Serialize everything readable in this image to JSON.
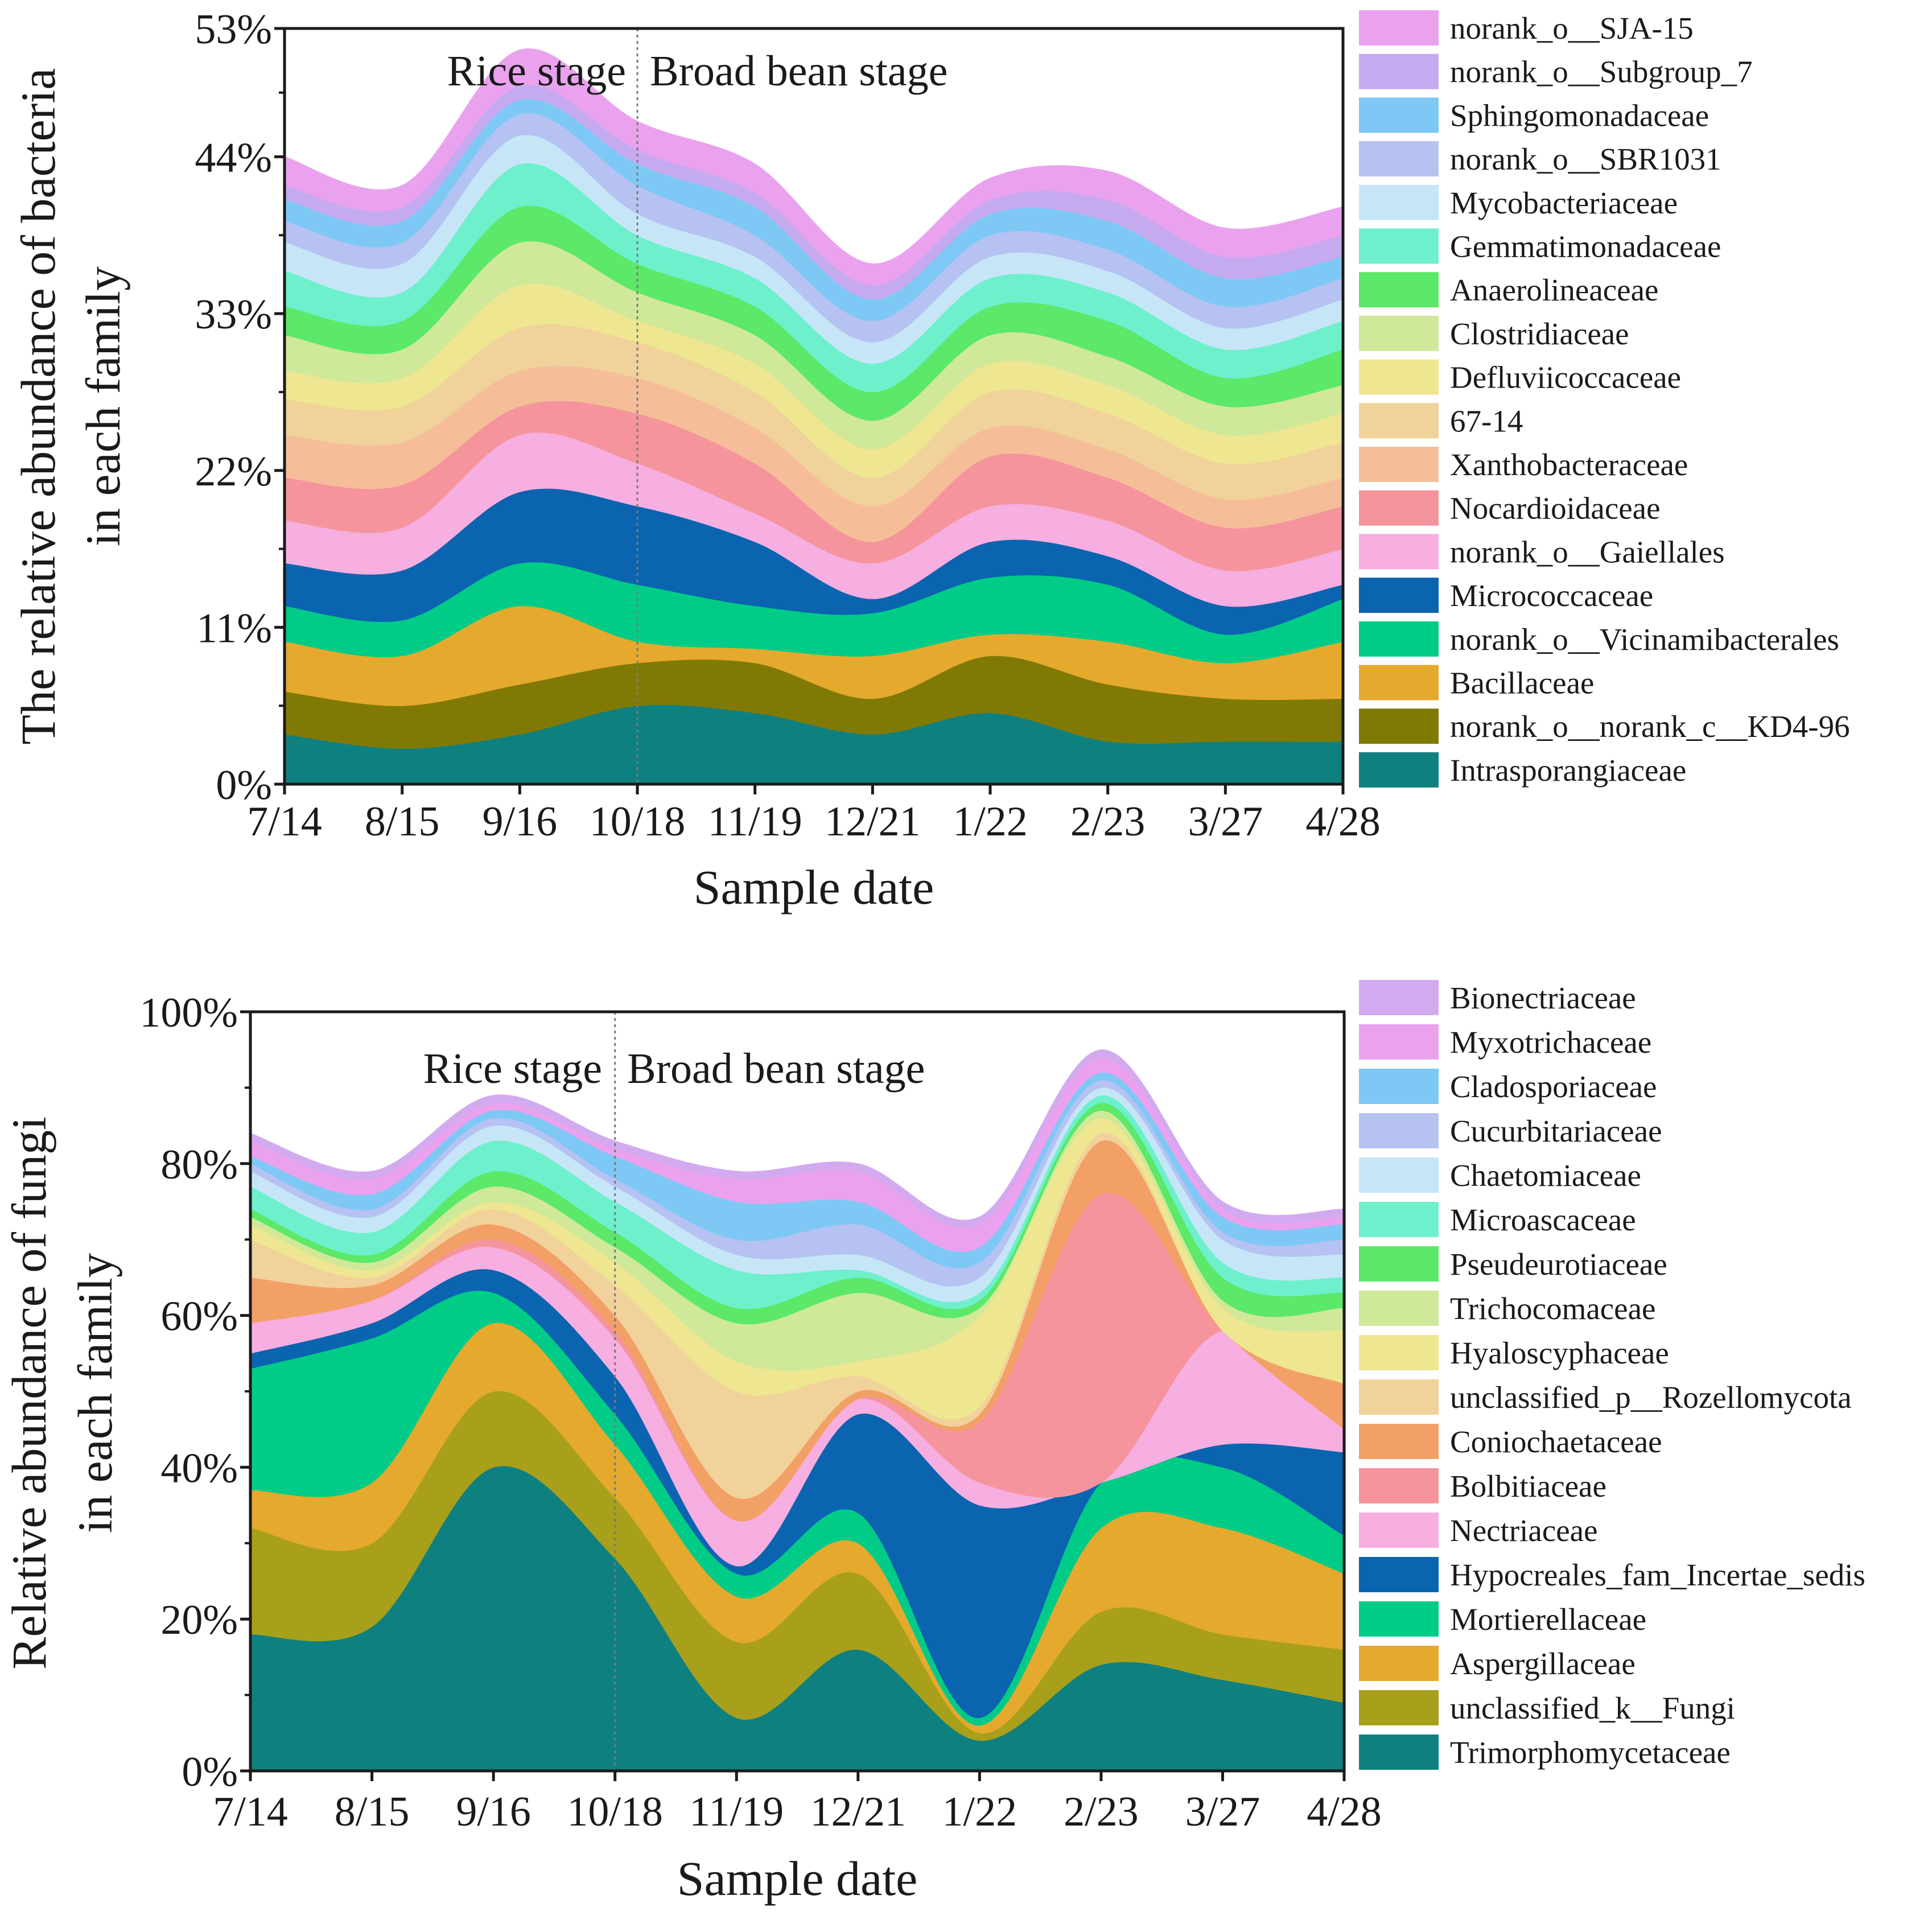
{
  "chart_data": [
    {
      "type": "area",
      "title": "",
      "xlabel": "Sample date",
      "ylabel": [
        "The relative abundance of bacteria",
        "in each family"
      ],
      "categories": [
        "7/14",
        "8/15",
        "9/16",
        "10/18",
        "11/19",
        "12/21",
        "1/22",
        "2/23",
        "3/27",
        "4/28"
      ],
      "ylim": [
        0,
        53
      ],
      "yticks": [
        0,
        11,
        22,
        33,
        44,
        53
      ],
      "ytick_labels": [
        "0%",
        "11%",
        "22%",
        "33%",
        "44%",
        "53%"
      ],
      "annotations": {
        "left": "Rice stage",
        "right": "Broad bean stage",
        "divider_at": "10/18"
      },
      "legend_position": "right",
      "series": [
        {
          "name": "Intrasporangiaceae",
          "color": "#0f8080",
          "values": [
            3.5,
            2.5,
            3.5,
            5.5,
            5,
            3.5,
            5,
            3,
            3,
            3
          ]
        },
        {
          "name": "norank_o__norank_c__KD4-96",
          "color": "#807a05",
          "values": [
            3,
            3,
            3.5,
            3,
            3.5,
            2.5,
            4,
            4,
            3,
            3
          ]
        },
        {
          "name": "Bacillaceae",
          "color": "#e5a92d",
          "values": [
            3.5,
            3.5,
            5.5,
            1.5,
            1,
            3,
            1.5,
            3,
            2.5,
            4
          ]
        },
        {
          "name": "norank_o__Vicinamibacterales",
          "color": "#00cc88",
          "values": [
            2.5,
            2.5,
            3,
            4,
            3,
            3,
            4,
            4,
            2,
            3
          ]
        },
        {
          "name": "Micrococcaceae",
          "color": "#0a64b0",
          "values": [
            3,
            3.5,
            5,
            5.5,
            4.5,
            1,
            2.5,
            2,
            2,
            1
          ]
        },
        {
          "name": "norank_o__Gaiellales",
          "color": "#f7aee0",
          "values": [
            3,
            3,
            4,
            3,
            2,
            2.5,
            2.5,
            2.5,
            2.5,
            2.5
          ]
        },
        {
          "name": "Nocardioidaceae",
          "color": "#f5949c",
          "values": [
            3,
            3,
            2,
            3.5,
            3.5,
            1.5,
            3.5,
            3,
            3,
            3
          ]
        },
        {
          "name": "Xanthobacteraceae",
          "color": "#f5be98",
          "values": [
            3,
            3,
            2.5,
            2.5,
            2.5,
            2.5,
            2,
            2,
            2,
            2
          ]
        },
        {
          "name": "67-14",
          "color": "#f0d29a",
          "values": [
            2.5,
            2.5,
            3,
            2.5,
            2.5,
            2,
            2.5,
            2.5,
            2.5,
            2.5
          ]
        },
        {
          "name": "Defluviicoccaceae",
          "color": "#eee690",
          "values": [
            2,
            2,
            3,
            1.5,
            2,
            2,
            2,
            2,
            2,
            2
          ]
        },
        {
          "name": "Clostridiaceae",
          "color": "#cfe89a",
          "values": [
            2.5,
            2,
            3,
            2,
            2,
            2,
            2,
            2,
            2,
            2
          ]
        },
        {
          "name": "Anaerolineaceae",
          "color": "#5ce868",
          "values": [
            2,
            2,
            2.5,
            2,
            2,
            2,
            2,
            2.5,
            2,
            2.5
          ]
        },
        {
          "name": "Gemmatimonadaceae",
          "color": "#6ef0cc",
          "values": [
            2.5,
            2,
            3,
            2,
            2,
            2,
            2,
            2,
            2,
            2
          ]
        },
        {
          "name": "Mycobacteriaceae",
          "color": "#c6e6f8",
          "values": [
            2,
            2,
            2,
            1.5,
            1.5,
            1.5,
            1.5,
            1.5,
            1.5,
            1.5
          ]
        },
        {
          "name": "norank_o__SBR1031",
          "color": "#b6c2f2",
          "values": [
            1.5,
            1.5,
            1.5,
            2,
            1.5,
            1.5,
            1.5,
            1.5,
            1.5,
            1.5
          ]
        },
        {
          "name": "Sphingomonadaceae",
          "color": "#7ec8f5",
          "values": [
            1.5,
            1.5,
            1,
            1.5,
            2,
            1.5,
            1.5,
            2,
            2,
            1.5
          ]
        },
        {
          "name": "norank_o__Subgroup_7",
          "color": "#c6aaf0",
          "values": [
            1,
            1,
            1,
            1,
            1,
            1,
            1,
            1.5,
            1.5,
            1.5
          ]
        },
        {
          "name": "norank_o__SJA-15",
          "color": "#eaa2ef",
          "values": [
            2,
            1.5,
            2.5,
            2,
            2,
            1.5,
            1.5,
            2,
            2,
            2
          ]
        }
      ]
    },
    {
      "type": "area",
      "title": "",
      "xlabel": "Sample date",
      "ylabel": [
        "Relative abundance of fungi",
        "in each family"
      ],
      "categories": [
        "7/14",
        "8/15",
        "9/16",
        "10/18",
        "11/19",
        "12/21",
        "1/22",
        "2/23",
        "3/27",
        "4/28"
      ],
      "ylim": [
        0,
        100
      ],
      "yticks": [
        0,
        20,
        40,
        60,
        80,
        100
      ],
      "ytick_labels": [
        "0%",
        "20%",
        "40%",
        "60%",
        "80%",
        "100%"
      ],
      "annotations": {
        "left": "Rice stage",
        "right": "Broad bean stage",
        "divider_at": "10/18"
      },
      "legend_position": "right",
      "series": [
        {
          "name": "Trimorphomycetaceae",
          "color": "#0f8080",
          "values": [
            18,
            19,
            40,
            28,
            7,
            16,
            4,
            14,
            12,
            9
          ]
        },
        {
          "name": "unclassified_k__Fungi",
          "color": "#a8a01a",
          "values": [
            14,
            11,
            10,
            8,
            10,
            10,
            1,
            7,
            6,
            7
          ]
        },
        {
          "name": "Aspergillaceae",
          "color": "#e5a92d",
          "values": [
            5,
            8,
            9,
            7,
            6,
            4,
            1,
            11,
            14,
            10
          ]
        },
        {
          "name": "Mortierellaceae",
          "color": "#00cc88",
          "values": [
            16,
            19,
            4,
            4,
            3,
            4,
            1,
            6,
            8,
            5
          ]
        },
        {
          "name": "Hypocreales_fam_Incertae_sedis",
          "color": "#0a64b0",
          "values": [
            2,
            2,
            3,
            5,
            1,
            13,
            28,
            0,
            3,
            11
          ]
        },
        {
          "name": "Nectriaceae",
          "color": "#f7aee0",
          "values": [
            4,
            3,
            3,
            5,
            6,
            2,
            3,
            0,
            15,
            3
          ]
        },
        {
          "name": "Bolbitiaceae",
          "color": "#f5949c",
          "values": [
            0,
            0,
            1,
            1,
            0,
            0,
            8,
            38,
            0,
            0
          ]
        },
        {
          "name": "Coniochaetaceae",
          "color": "#f2a066",
          "values": [
            6,
            2,
            2,
            2,
            3,
            1,
            1,
            7,
            0,
            6
          ]
        },
        {
          "name": "unclassified_p__Rozellomycota",
          "color": "#f0d29a",
          "values": [
            5,
            1,
            2,
            4,
            14,
            2,
            1,
            1,
            0,
            0
          ]
        },
        {
          "name": "Hyaloscyphaceae",
          "color": "#eee690",
          "values": [
            2,
            1,
            1,
            3,
            4,
            2,
            12,
            2,
            3,
            7
          ]
        },
        {
          "name": "Trichocomaceae",
          "color": "#cfe89a",
          "values": [
            1,
            1,
            2,
            2,
            5,
            9,
            1,
            1,
            1,
            3
          ]
        },
        {
          "name": "Pseudeurotiaceae",
          "color": "#5ce868",
          "values": [
            1,
            1,
            2,
            2,
            2,
            2,
            1,
            1,
            3,
            2
          ]
        },
        {
          "name": "Microascaceae",
          "color": "#6ef0cc",
          "values": [
            3,
            3,
            4,
            4,
            5,
            1,
            1,
            1,
            2,
            2
          ]
        },
        {
          "name": "Chaetomiaceae",
          "color": "#c6e6f8",
          "values": [
            2,
            2,
            2,
            2,
            2,
            2,
            2,
            1,
            3,
            3
          ]
        },
        {
          "name": "Cucurbitariaceae",
          "color": "#b6c2f2",
          "values": [
            1,
            1,
            1,
            1,
            2,
            4,
            2,
            1,
            1,
            2
          ]
        },
        {
          "name": "Cladosporiaceae",
          "color": "#7ec8f5",
          "values": [
            1,
            2,
            1,
            3,
            5,
            3,
            2,
            1,
            2,
            2
          ]
        },
        {
          "name": "Myxotrichaceae",
          "color": "#eaa2ef",
          "values": [
            2,
            2,
            1,
            1,
            3,
            4,
            3,
            2,
            1,
            1
          ]
        },
        {
          "name": "Bionectriaceae",
          "color": "#d3aaf0",
          "values": [
            1,
            1,
            1,
            1,
            1,
            1,
            1,
            1,
            1,
            1
          ]
        }
      ]
    }
  ]
}
